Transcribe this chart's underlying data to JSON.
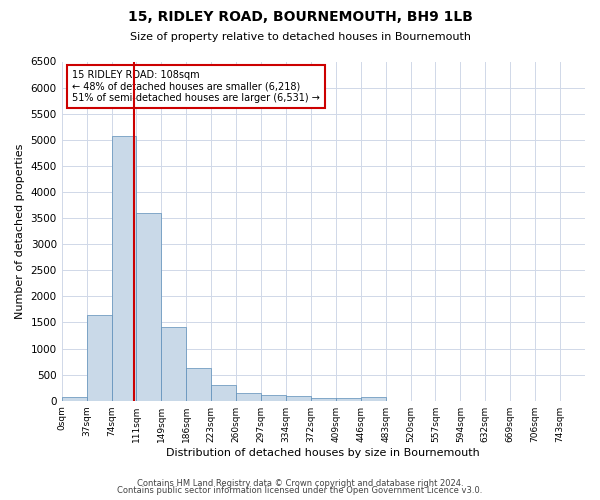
{
  "title": "15, RIDLEY ROAD, BOURNEMOUTH, BH9 1LB",
  "subtitle": "Size of property relative to detached houses in Bournemouth",
  "xlabel": "Distribution of detached houses by size in Bournemouth",
  "ylabel": "Number of detached properties",
  "bin_labels": [
    "0sqm",
    "37sqm",
    "74sqm",
    "111sqm",
    "149sqm",
    "186sqm",
    "223sqm",
    "260sqm",
    "297sqm",
    "334sqm",
    "372sqm",
    "409sqm",
    "446sqm",
    "483sqm",
    "520sqm",
    "557sqm",
    "594sqm",
    "632sqm",
    "669sqm",
    "706sqm",
    "743sqm"
  ],
  "bar_values": [
    75,
    1650,
    5070,
    3600,
    1420,
    620,
    295,
    150,
    115,
    85,
    55,
    55,
    75,
    0,
    0,
    0,
    0,
    0,
    0,
    0,
    0
  ],
  "bar_color": "#c9d9e8",
  "bar_edge_color": "#5b8db8",
  "grid_color": "#d0d8e8",
  "red_line_color": "#cc0000",
  "annotation_text": "15 RIDLEY ROAD: 108sqm\n← 48% of detached houses are smaller (6,218)\n51% of semi-detached houses are larger (6,531) →",
  "annotation_box_color": "#ffffff",
  "annotation_box_edge": "#cc0000",
  "ylim": [
    0,
    6500
  ],
  "yticks": [
    0,
    500,
    1000,
    1500,
    2000,
    2500,
    3000,
    3500,
    4000,
    4500,
    5000,
    5500,
    6000,
    6500
  ],
  "footnote1": "Contains HM Land Registry data © Crown copyright and database right 2024.",
  "footnote2": "Contains public sector information licensed under the Open Government Licence v3.0."
}
